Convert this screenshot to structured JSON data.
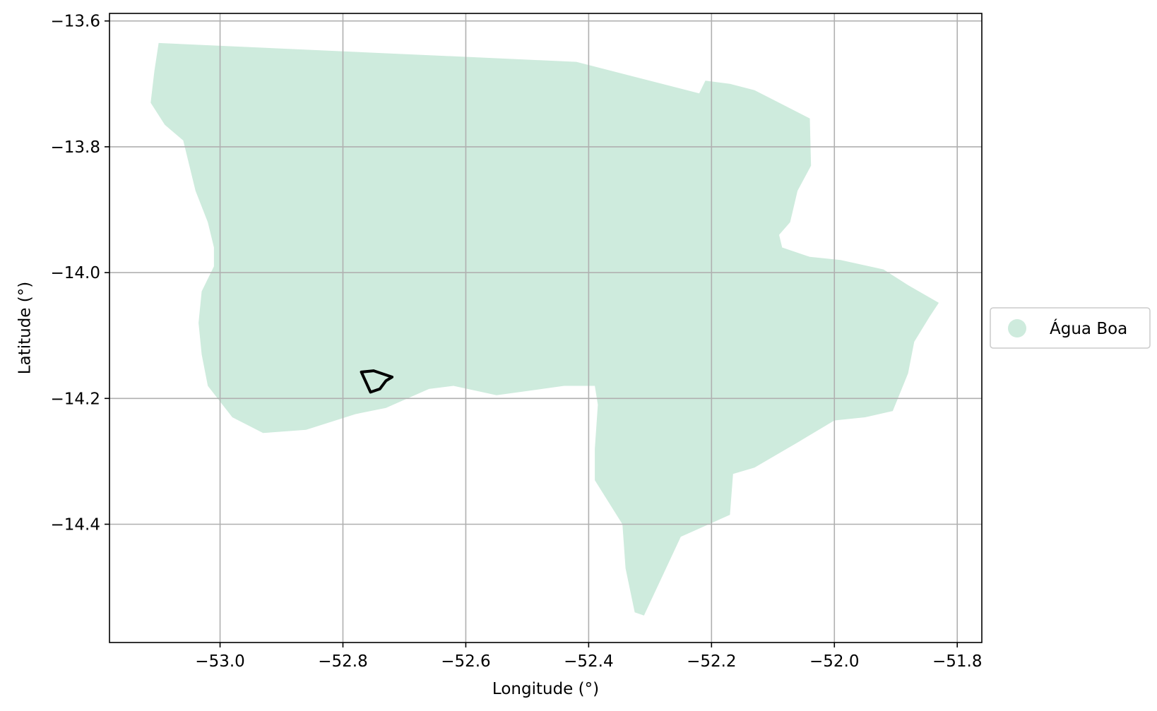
{
  "map": {
    "xlabel": "Longitude (°)",
    "ylabel": "Latitude (°)",
    "xlim": [
      -53.18,
      -51.76
    ],
    "ylim": [
      -14.588,
      -13.588
    ],
    "grid": true,
    "x_ticks": [
      {
        "value": -53.0,
        "label": "−53.0"
      },
      {
        "value": -52.8,
        "label": "−52.8"
      },
      {
        "value": -52.6,
        "label": "−52.6"
      },
      {
        "value": -52.4,
        "label": "−52.4"
      },
      {
        "value": -52.2,
        "label": "−52.2"
      },
      {
        "value": -52.0,
        "label": "−52.0"
      },
      {
        "value": -51.8,
        "label": "−51.8"
      }
    ],
    "y_ticks": [
      {
        "value": -13.6,
        "label": "−13.6"
      },
      {
        "value": -13.8,
        "label": "−13.8"
      },
      {
        "value": -14.0,
        "label": "−14.0"
      },
      {
        "value": -14.2,
        "label": "−14.2"
      },
      {
        "value": -14.4,
        "label": "−14.4"
      }
    ],
    "region": {
      "name": "Água Boa",
      "fill_color": "#ceebdd",
      "outline_lonlat": [
        [
          -53.1,
          -13.635
        ],
        [
          -52.42,
          -13.665
        ],
        [
          -52.22,
          -13.715
        ],
        [
          -52.21,
          -13.695
        ],
        [
          -52.17,
          -13.7
        ],
        [
          -52.13,
          -13.71
        ],
        [
          -52.09,
          -13.73
        ],
        [
          -52.04,
          -13.755
        ],
        [
          -52.038,
          -13.83
        ],
        [
          -52.06,
          -13.87
        ],
        [
          -52.072,
          -13.92
        ],
        [
          -52.09,
          -13.94
        ],
        [
          -52.085,
          -13.96
        ],
        [
          -52.04,
          -13.975
        ],
        [
          -51.99,
          -13.98
        ],
        [
          -51.92,
          -13.995
        ],
        [
          -51.88,
          -14.02
        ],
        [
          -51.83,
          -14.048
        ],
        [
          -51.845,
          -14.07
        ],
        [
          -51.87,
          -14.11
        ],
        [
          -51.88,
          -14.16
        ],
        [
          -51.905,
          -14.22
        ],
        [
          -51.95,
          -14.23
        ],
        [
          -52.0,
          -14.235
        ],
        [
          -52.06,
          -14.27
        ],
        [
          -52.13,
          -14.31
        ],
        [
          -52.165,
          -14.32
        ],
        [
          -52.17,
          -14.385
        ],
        [
          -52.25,
          -14.42
        ],
        [
          -52.31,
          -14.545
        ],
        [
          -52.325,
          -14.54
        ],
        [
          -52.34,
          -14.47
        ],
        [
          -52.345,
          -14.4
        ],
        [
          -52.39,
          -14.33
        ],
        [
          -52.39,
          -14.28
        ],
        [
          -52.385,
          -14.21
        ],
        [
          -52.39,
          -14.18
        ],
        [
          -52.44,
          -14.18
        ],
        [
          -52.55,
          -14.195
        ],
        [
          -52.62,
          -14.18
        ],
        [
          -52.66,
          -14.185
        ],
        [
          -52.73,
          -14.215
        ],
        [
          -52.78,
          -14.225
        ],
        [
          -52.86,
          -14.25
        ],
        [
          -52.93,
          -14.255
        ],
        [
          -52.98,
          -14.23
        ],
        [
          -53.02,
          -14.18
        ],
        [
          -53.03,
          -14.13
        ],
        [
          -53.035,
          -14.08
        ],
        [
          -53.03,
          -14.03
        ],
        [
          -53.01,
          -13.99
        ],
        [
          -53.01,
          -13.96
        ],
        [
          -53.02,
          -13.92
        ],
        [
          -53.04,
          -13.87
        ],
        [
          -53.05,
          -13.83
        ],
        [
          -53.06,
          -13.79
        ],
        [
          -53.09,
          -13.765
        ],
        [
          -53.113,
          -13.73
        ],
        [
          -53.107,
          -13.68
        ]
      ]
    },
    "site_outline_lonlat": [
      [
        -52.77,
        -14.158
      ],
      [
        -52.75,
        -14.156
      ],
      [
        -52.72,
        -14.166
      ],
      [
        -52.73,
        -14.172
      ],
      [
        -52.74,
        -14.185
      ],
      [
        -52.755,
        -14.19
      ],
      [
        -52.77,
        -14.158
      ]
    ],
    "legend": {
      "label": "Água Boa",
      "position": "center right, outside plot"
    }
  }
}
